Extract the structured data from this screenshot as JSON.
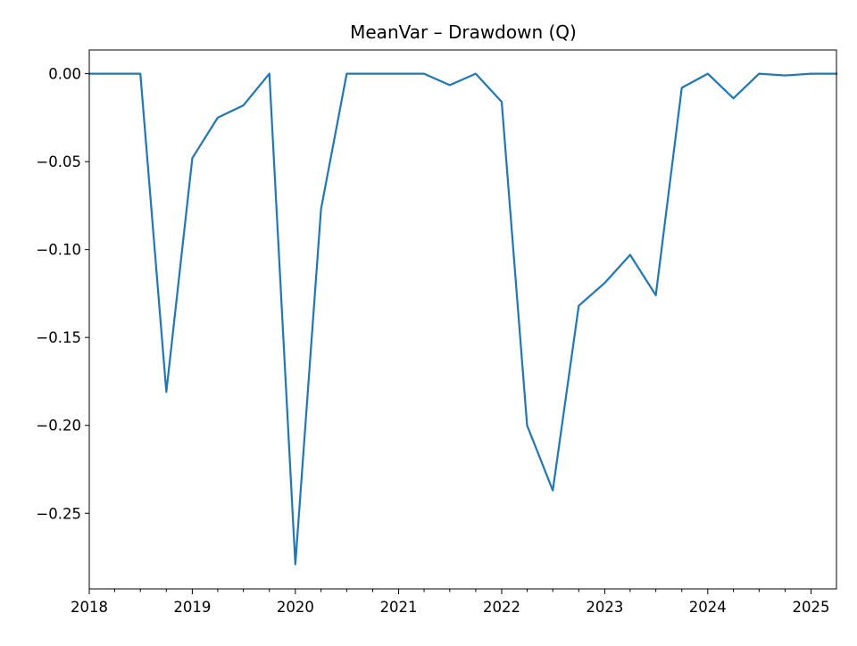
{
  "chart_data": {
    "type": "line",
    "title": "MeanVar – Drawdown (Q)",
    "xlabel": "",
    "ylabel": "",
    "x_ticks": [
      "2018",
      "2019",
      "2020",
      "2021",
      "2022",
      "2023",
      "2024",
      "2025"
    ],
    "y_ticks": [
      "0.00",
      "−0.05",
      "−0.10",
      "−0.15",
      "−0.20",
      "−0.25"
    ],
    "xlim": [
      "2018-01-01",
      "2025-04-01"
    ],
    "ylim": [
      -0.293,
      0.0135
    ],
    "grid": false,
    "legend": "none",
    "series": [
      {
        "color": "#1f77b4",
        "x": [
          "2018-01-01",
          "2018-04-01",
          "2018-07-01",
          "2018-10-01",
          "2019-01-01",
          "2019-04-01",
          "2019-07-01",
          "2019-10-01",
          "2020-01-01",
          "2020-04-01",
          "2020-07-01",
          "2020-10-01",
          "2021-01-01",
          "2021-04-01",
          "2021-07-01",
          "2021-10-01",
          "2022-01-01",
          "2022-04-01",
          "2022-07-01",
          "2022-10-01",
          "2023-01-01",
          "2023-04-01",
          "2023-07-01",
          "2023-10-01",
          "2024-01-01",
          "2024-04-01",
          "2024-07-01",
          "2024-10-01",
          "2025-01-01",
          "2025-04-01"
        ],
        "y": [
          0.0,
          0.0,
          0.0,
          -0.181,
          -0.048,
          -0.025,
          -0.018,
          0.0,
          -0.279,
          -0.077,
          0.0,
          0.0,
          0.0,
          0.0,
          -0.0065,
          0.0,
          -0.016,
          -0.2,
          -0.237,
          -0.132,
          -0.119,
          -0.103,
          -0.126,
          -0.008,
          0.0,
          -0.014,
          0.0,
          -0.001,
          0.0,
          0.0
        ]
      }
    ]
  }
}
